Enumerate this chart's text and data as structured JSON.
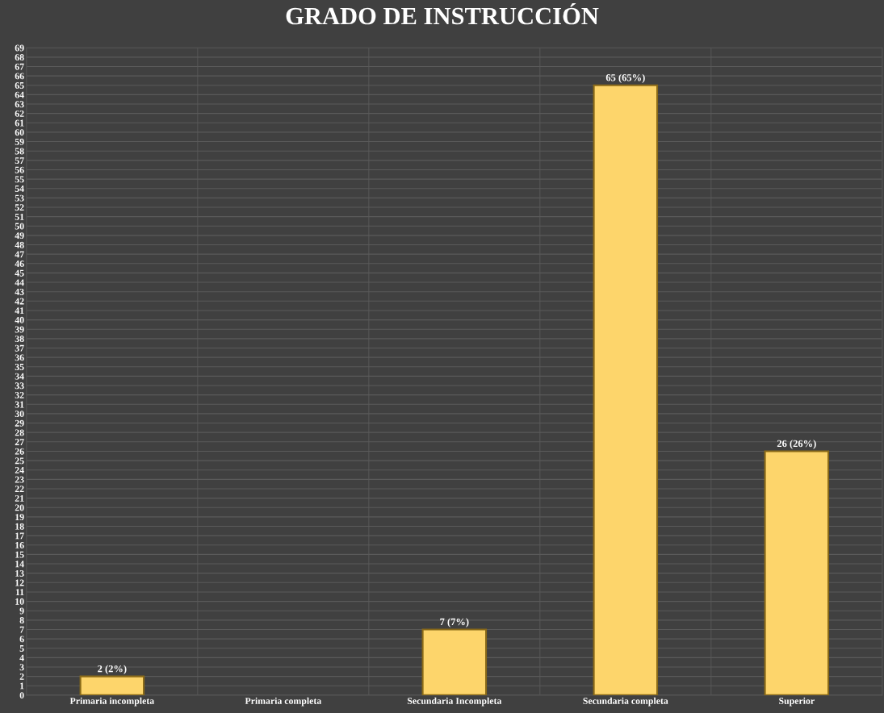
{
  "chart_data": {
    "type": "bar",
    "title": "GRADO DE INSTRUCCIÓN",
    "categories": [
      "Primaria incompleta",
      "Primaria completa",
      "Secundaria Incompleta",
      "Secundaria completa",
      "Superior"
    ],
    "values": [
      2,
      0,
      7,
      65,
      26
    ],
    "value_labels": [
      "2 (2%)",
      null,
      "7 (7%)",
      "65 (65%)",
      "26 (26%)"
    ],
    "color": "#fdd56b",
    "ylim": [
      0,
      69
    ],
    "yticks": [
      0,
      1,
      2,
      3,
      4,
      5,
      6,
      7,
      8,
      9,
      10,
      11,
      12,
      13,
      14,
      15,
      16,
      17,
      18,
      19,
      20,
      21,
      22,
      23,
      24,
      25,
      26,
      27,
      28,
      29,
      30,
      31,
      32,
      33,
      34,
      35,
      36,
      37,
      38,
      39,
      40,
      41,
      42,
      43,
      44,
      45,
      46,
      47,
      48,
      49,
      50,
      51,
      52,
      53,
      54,
      55,
      56,
      57,
      58,
      59,
      60,
      61,
      62,
      63,
      64,
      65,
      66,
      67,
      68,
      69
    ],
    "grid": true,
    "legend": false
  }
}
